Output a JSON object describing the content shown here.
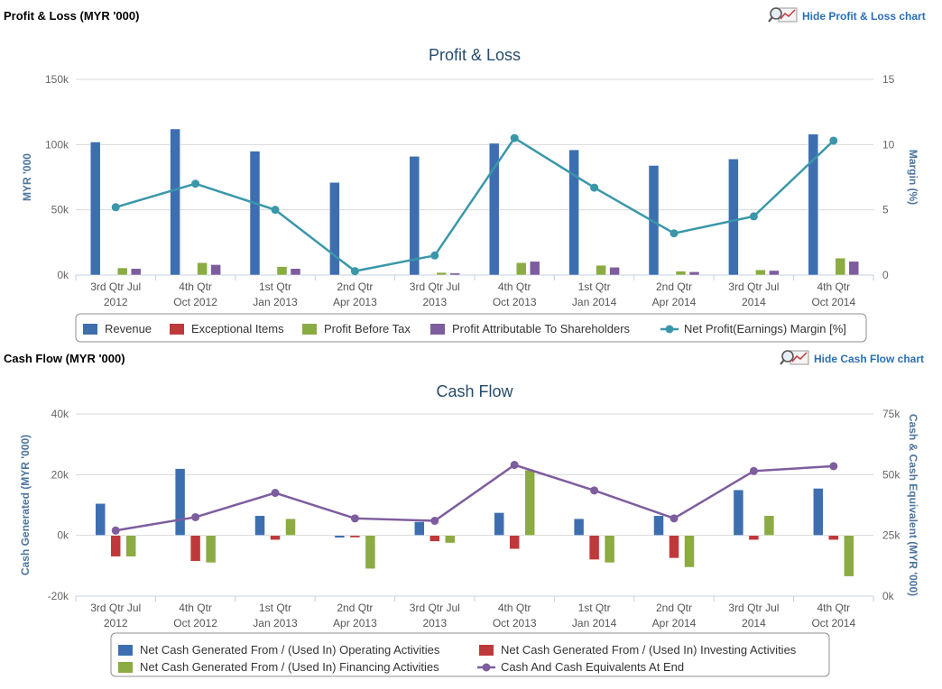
{
  "pl_section": {
    "title": "Profit & Loss (MYR '000)",
    "hide_label": "Hide Profit & Loss chart"
  },
  "cf_section": {
    "title": "Cash Flow (MYR '000)",
    "hide_label": "Hide Cash Flow chart"
  },
  "chart_data": [
    {
      "type": "bar",
      "title": "Profit & Loss",
      "xlabel": "",
      "ylabel": "MYR '000",
      "y2label": "Margin (%)",
      "ylim": [
        0,
        150000
      ],
      "y2lim": [
        0,
        15
      ],
      "yticks": [
        "0k",
        "50k",
        "100k",
        "150k"
      ],
      "y2ticks": [
        "0",
        "5",
        "10",
        "15"
      ],
      "categories": [
        [
          "3rd Qtr Jul",
          "2012"
        ],
        [
          "4th Qtr",
          "Oct 2012"
        ],
        [
          "1st Qtr",
          "Jan 2013"
        ],
        [
          "2nd Qtr",
          "Apr 2013"
        ],
        [
          "3rd Qtr Jul",
          "2013"
        ],
        [
          "4th Qtr",
          "Oct 2013"
        ],
        [
          "1st Qtr",
          "Jan 2014"
        ],
        [
          "2nd Qtr",
          "Apr 2014"
        ],
        [
          "3rd Qtr Jul",
          "2014"
        ],
        [
          "4th Qtr",
          "Oct 2014"
        ]
      ],
      "series": [
        {
          "name": "Revenue",
          "kind": "bar",
          "axis": "left",
          "color": "#3d6fb0",
          "values": [
            102000,
            112000,
            95000,
            71000,
            91000,
            101000,
            96000,
            84000,
            89000,
            108000
          ]
        },
        {
          "name": "Exceptional Items",
          "kind": "bar",
          "axis": "left",
          "color": "#c0393a",
          "values": [
            0,
            0,
            0,
            0,
            0,
            0,
            0,
            0,
            0,
            0
          ]
        },
        {
          "name": "Profit Before Tax",
          "kind": "bar",
          "axis": "left",
          "color": "#8bab43",
          "values": [
            5500,
            9500,
            6500,
            0,
            2000,
            9500,
            7500,
            3000,
            4000,
            13000
          ]
        },
        {
          "name": "Profit Attributable To Shareholders",
          "kind": "bar",
          "axis": "left",
          "color": "#7e5d9e",
          "values": [
            5000,
            8000,
            5000,
            0,
            1500,
            10500,
            6000,
            2500,
            3500,
            10500
          ]
        },
        {
          "name": "Net Profit(Earnings) Margin [%]",
          "kind": "line",
          "axis": "right",
          "color": "#3a97aa",
          "values": [
            5.2,
            7.0,
            5.0,
            0.3,
            1.5,
            10.5,
            6.7,
            3.2,
            4.5,
            10.3
          ]
        }
      ],
      "legend": "bottom",
      "grid": true
    },
    {
      "type": "bar",
      "title": "Cash Flow",
      "xlabel": "",
      "ylabel": "Cash Generated (MYR '000)",
      "y2label": "Cash & Cash Equivalent (MYR '000)",
      "ylim": [
        -20000,
        40000
      ],
      "y2lim": [
        0,
        75000
      ],
      "yticks": [
        "-20k",
        "0k",
        "20k",
        "40k"
      ],
      "y2ticks": [
        "0k",
        "25k",
        "50k",
        "75k"
      ],
      "categories": [
        [
          "3rd Qtr Jul",
          "2012"
        ],
        [
          "4th Qtr",
          "Oct 2012"
        ],
        [
          "1st Qtr",
          "Jan 2013"
        ],
        [
          "2nd Qtr",
          "Apr 2013"
        ],
        [
          "3rd Qtr Jul",
          "2013"
        ],
        [
          "4th Qtr",
          "Oct 2013"
        ],
        [
          "1st Qtr",
          "Jan 2014"
        ],
        [
          "2nd Qtr",
          "Apr 2014"
        ],
        [
          "3rd Qtr Jul",
          "2014"
        ],
        [
          "4th Qtr",
          "Oct 2014"
        ]
      ],
      "series": [
        {
          "name": "Net Cash Generated From / (Used In) Operating Activities",
          "kind": "bar",
          "axis": "left",
          "color": "#3d6fb0",
          "values": [
            10500,
            22000,
            6500,
            -800,
            4500,
            7500,
            5500,
            6500,
            15000,
            15500
          ]
        },
        {
          "name": "Net Cash Generated From / (Used In) Investing Activities",
          "kind": "bar",
          "axis": "left",
          "color": "#c0393a",
          "values": [
            -7000,
            -8500,
            -1500,
            -700,
            -2000,
            -4500,
            -8000,
            -7500,
            -1500,
            -1500
          ]
        },
        {
          "name": "Net Cash Generated From / (Used In) Financing Activities",
          "kind": "bar",
          "axis": "left",
          "color": "#8bab43",
          "values": [
            -7000,
            -9000,
            5500,
            -11000,
            -2500,
            21500,
            -9000,
            -10500,
            6500,
            -13500
          ]
        },
        {
          "name": "Cash And Cash Equivalents At End",
          "kind": "line",
          "axis": "right",
          "color": "#7e5d9e",
          "values": [
            27000,
            32500,
            42500,
            32000,
            31000,
            54000,
            43500,
            32000,
            51500,
            53500
          ]
        }
      ],
      "legend": "bottom",
      "grid": true
    }
  ]
}
